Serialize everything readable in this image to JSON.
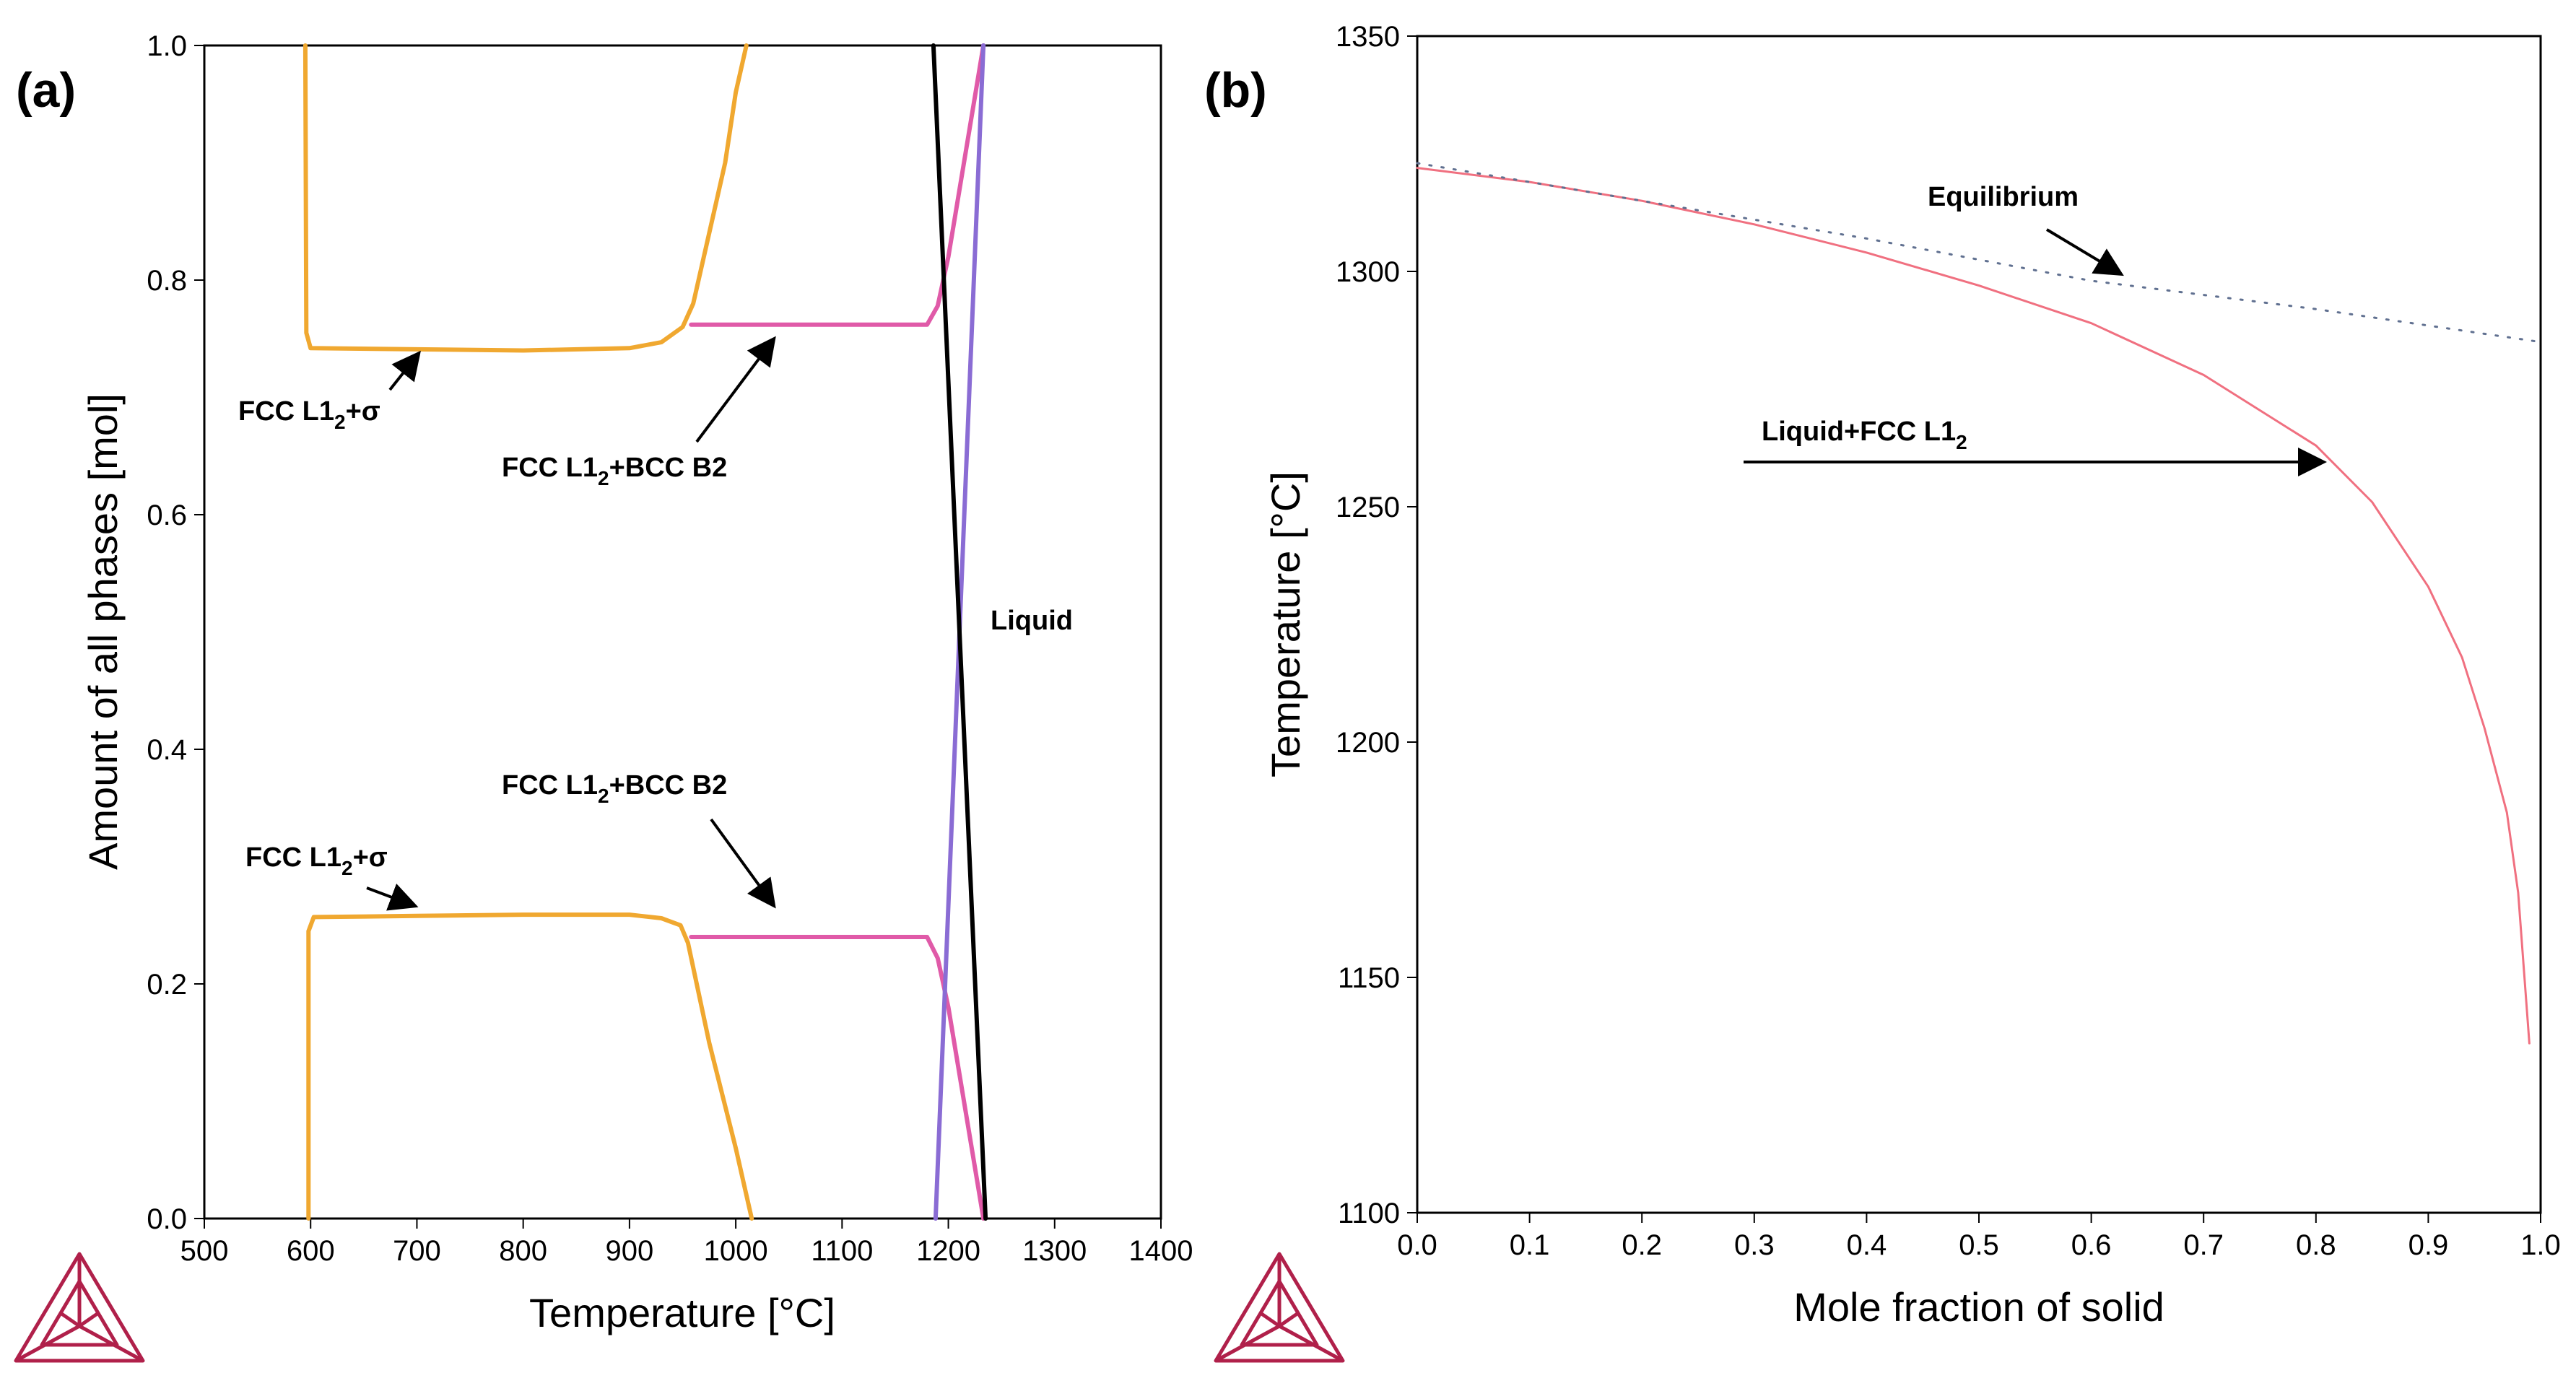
{
  "colors": {
    "fcc_sigma": "#f0a830",
    "fcc_bcc": "#e05aa8",
    "liquid_a": "#8a6cd4",
    "liquid_b": "#000000",
    "scheil": "#f07080",
    "equilibrium": "#607090",
    "logo": "#b0204a"
  },
  "icons": {
    "logo": "thermo-calc-logo-icon"
  },
  "chart_data": [
    {
      "panel": "(a)",
      "type": "line",
      "xlabel": "Temperature [°C]",
      "ylabel": "Amount of all phases [mol]",
      "xlim": [
        500,
        1400
      ],
      "ylim": [
        0,
        1.0
      ],
      "xticks": [
        "500",
        "600",
        "700",
        "800",
        "900",
        "1000",
        "1100",
        "1200",
        "1300",
        "1400"
      ],
      "yticks": [
        "0.0",
        "0.2",
        "0.4",
        "0.6",
        "0.8",
        "1.0"
      ],
      "series": [
        {
          "name": "FCC L1₂ (upper)",
          "color_key": "fcc_sigma",
          "points": [
            [
              595,
              1.0
            ],
            [
              596,
              0.755
            ],
            [
              600,
              0.742
            ],
            [
              700,
              0.741
            ],
            [
              800,
              0.74
            ],
            [
              900,
              0.742
            ],
            [
              930,
              0.747
            ],
            [
              950,
              0.76
            ],
            [
              960,
              0.78
            ],
            [
              990,
              0.9
            ],
            [
              1000,
              0.96
            ],
            [
              1010,
              1.0
            ]
          ]
        },
        {
          "name": "FCC L1₂ (lower)",
          "color_key": "fcc_sigma",
          "points": [
            [
              598,
              0.0
            ],
            [
              598,
              0.245
            ],
            [
              603,
              0.257
            ],
            [
              700,
              0.258
            ],
            [
              800,
              0.259
            ],
            [
              900,
              0.259
            ],
            [
              930,
              0.256
            ],
            [
              948,
              0.25
            ],
            [
              955,
              0.235
            ],
            [
              975,
              0.15
            ],
            [
              1000,
              0.06
            ],
            [
              1015,
              0.0
            ]
          ]
        },
        {
          "name": "BCC B2 (upper)",
          "color_key": "fcc_bcc",
          "points": [
            [
              958,
              0.762
            ],
            [
              1180,
              0.762
            ],
            [
              1190,
              0.778
            ],
            [
              1200,
              0.82
            ],
            [
              1233,
              1.0
            ]
          ]
        },
        {
          "name": "BCC B2 (lower)",
          "color_key": "fcc_bcc",
          "points": [
            [
              958,
              0.24
            ],
            [
              1180,
              0.24
            ],
            [
              1190,
              0.222
            ],
            [
              1200,
              0.18
            ],
            [
              1233,
              0.0
            ]
          ]
        },
        {
          "name": "Liquid (rising)",
          "color_key": "liquid_a",
          "points": [
            [
              1188,
              0.0
            ],
            [
              1233,
              1.0
            ]
          ]
        },
        {
          "name": "Liquid (falling)",
          "color_key": "liquid_b",
          "points": [
            [
              1186,
              1.0
            ],
            [
              1235,
              0.0
            ]
          ]
        }
      ],
      "annotations": [
        {
          "text_main": "FCC L1",
          "sub": "2",
          "text_tail": "+σ"
        },
        {
          "text_main": "FCC L1",
          "sub": "2",
          "text_tail": "+BCC B2"
        },
        {
          "text_main": "Liquid",
          "sub": "",
          "text_tail": ""
        },
        {
          "text_main": "FCC L1",
          "sub": "2",
          "text_tail": "+BCC B2"
        },
        {
          "text_main": "FCC L1",
          "sub": "2",
          "text_tail": "+σ"
        }
      ]
    },
    {
      "panel": "(b)",
      "type": "line",
      "xlabel": "Mole fraction of solid",
      "ylabel": "Temperature [°C]",
      "xlim": [
        0,
        1.0
      ],
      "ylim": [
        1100,
        1350
      ],
      "xticks": [
        "0.0",
        "0.1",
        "0.2",
        "0.3",
        "0.4",
        "0.5",
        "0.6",
        "0.7",
        "0.8",
        "0.9",
        "1.0"
      ],
      "yticks": [
        "1100",
        "1150",
        "1200",
        "1250",
        "1300",
        "1350"
      ],
      "series": [
        {
          "name": "Liquid+FCC L1₂ (Scheil)",
          "color_key": "scheil",
          "style": "solid",
          "points": [
            [
              0,
              1322
            ],
            [
              0.1,
              1319
            ],
            [
              0.2,
              1315
            ],
            [
              0.3,
              1310
            ],
            [
              0.4,
              1304
            ],
            [
              0.5,
              1297
            ],
            [
              0.6,
              1289
            ],
            [
              0.7,
              1278
            ],
            [
              0.8,
              1263
            ],
            [
              0.85,
              1251
            ],
            [
              0.9,
              1233
            ],
            [
              0.93,
              1218
            ],
            [
              0.95,
              1203
            ],
            [
              0.97,
              1185
            ],
            [
              0.98,
              1168
            ],
            [
              0.99,
              1136
            ]
          ]
        },
        {
          "name": "Equilibrium",
          "color_key": "equilibrium",
          "style": "dotted",
          "points": [
            [
              0,
              1323
            ],
            [
              0.2,
              1315
            ],
            [
              0.4,
              1307
            ],
            [
              0.6,
              1298
            ],
            [
              0.8,
              1292
            ],
            [
              1.0,
              1285
            ]
          ]
        }
      ],
      "annotations": [
        {
          "text_main": "Equilibrium",
          "sub": "",
          "text_tail": ""
        },
        {
          "text_main": "Liquid+FCC L1",
          "sub": "2",
          "text_tail": ""
        }
      ]
    }
  ]
}
